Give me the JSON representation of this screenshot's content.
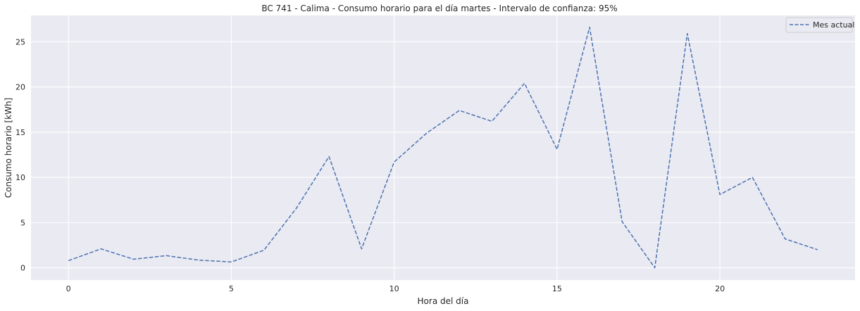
{
  "chart_data": {
    "type": "line",
    "title": "BC 741 - Calima - Consumo horario para el día martes - Intervalo de confianza: 95%",
    "xlabel": "Hora del día",
    "ylabel": "Consumo horario [kWh]",
    "xlim": [
      -1.15,
      24.15
    ],
    "ylim": [
      -1.35,
      27.9
    ],
    "xticks": [
      0,
      5,
      10,
      15,
      20
    ],
    "yticks": [
      0,
      5,
      10,
      15,
      20,
      25
    ],
    "grid": true,
    "legend_position": "top-right",
    "series": [
      {
        "name": "Mes actual",
        "color": "#4c72b0",
        "line_style": "dashed",
        "x": [
          0,
          1,
          2,
          3,
          4,
          5,
          6,
          7,
          8,
          9,
          10,
          11,
          12,
          13,
          14,
          15,
          16,
          17,
          18,
          19,
          20,
          21,
          22,
          23
        ],
        "values": [
          0.8,
          2.1,
          0.95,
          1.35,
          0.85,
          0.65,
          1.95,
          6.6,
          12.3,
          2.1,
          11.7,
          14.9,
          17.4,
          16.2,
          20.4,
          13.1,
          26.6,
          5.1,
          0.0,
          25.9,
          8.1,
          10.0,
          3.2,
          2.0
        ]
      }
    ]
  }
}
